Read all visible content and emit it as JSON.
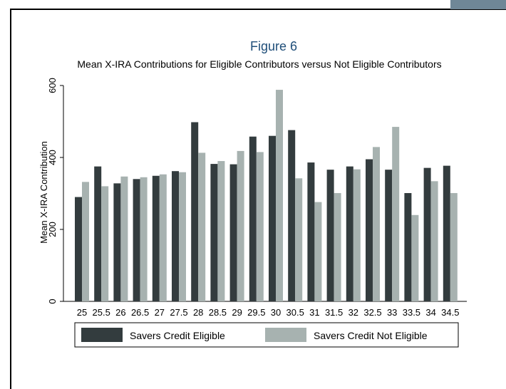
{
  "chart_data": {
    "type": "bar",
    "title": "Figure 6",
    "subtitle": "Mean X-IRA Contributions for Eligible Contributors versus Not Eligible Contributors",
    "ylabel": "Mean X-IRA Contribution",
    "xlabel": "",
    "ylim": [
      0,
      600
    ],
    "yticks": [
      0,
      200,
      400,
      600
    ],
    "grid": false,
    "legend_position": "bottom",
    "categories": [
      "25",
      "25.5",
      "26",
      "26.5",
      "27",
      "27.5",
      "28",
      "28.5",
      "29",
      "29.5",
      "30",
      "30.5",
      "31",
      "31.5",
      "32",
      "32.5",
      "33",
      "33.5",
      "34",
      "34.5"
    ],
    "series": [
      {
        "name": "Savers Credit Eligible",
        "color": "#333c3e",
        "values": [
          290,
          375,
          328,
          340,
          349,
          362,
          498,
          382,
          381,
          458,
          460,
          476,
          386,
          366,
          375,
          395,
          366,
          301,
          371,
          377
        ]
      },
      {
        "name": "Savers Credit Not Eligible",
        "color": "#a7b2b0",
        "values": [
          332,
          320,
          347,
          345,
          353,
          359,
          413,
          390,
          418,
          415,
          588,
          342,
          276,
          301,
          367,
          429,
          485,
          240,
          334,
          301
        ]
      }
    ]
  }
}
